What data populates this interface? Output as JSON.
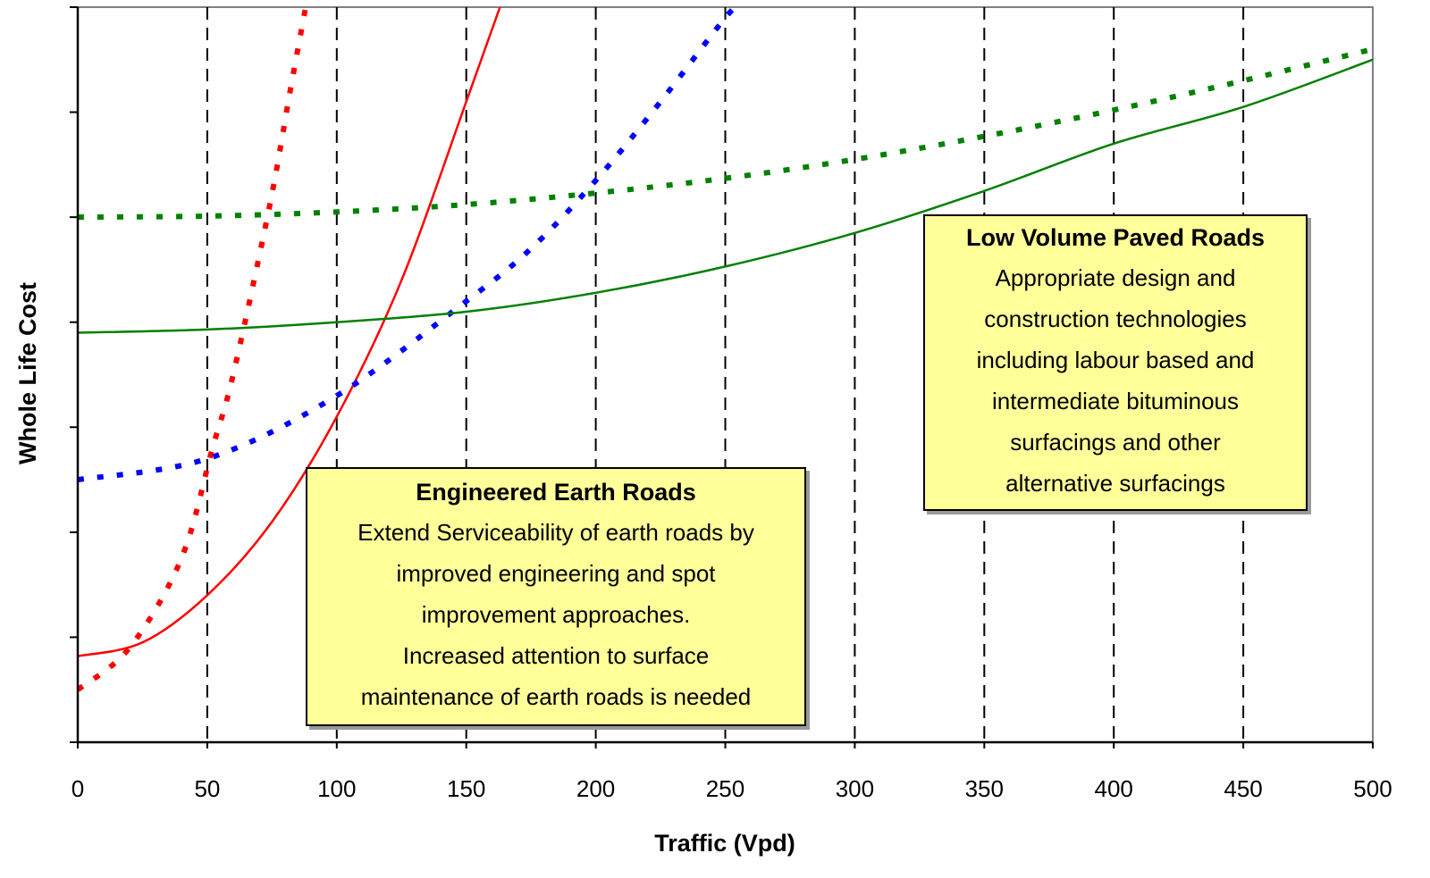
{
  "chart_data": {
    "type": "line",
    "xlabel": "Traffic (Vpd)",
    "ylabel": "Whole Life Cost",
    "xlim": [
      0,
      500
    ],
    "ylim": [
      0,
      7
    ],
    "x_ticks": [
      0,
      50,
      100,
      150,
      200,
      250,
      300,
      350,
      400,
      450,
      500
    ],
    "y_tick_count": 8,
    "vertical_gridlines": "dashed",
    "series": [
      {
        "color": "#ff0000",
        "style": "dotted",
        "points": [
          [
            0,
            0.5
          ],
          [
            20,
            0.9
          ],
          [
            40,
            1.75
          ],
          [
            52,
            2.8
          ],
          [
            60,
            3.5
          ],
          [
            74,
            5.1
          ],
          [
            82,
            6.2
          ],
          [
            88,
            7.0
          ]
        ]
      },
      {
        "color": "#ff0000",
        "style": "solid",
        "points": [
          [
            0,
            0.82
          ],
          [
            25,
            0.95
          ],
          [
            50,
            1.4
          ],
          [
            75,
            2.1
          ],
          [
            100,
            3.1
          ],
          [
            125,
            4.4
          ],
          [
            150,
            6.1
          ],
          [
            163,
            7.0
          ]
        ]
      },
      {
        "color": "#0000ff",
        "style": "dotted",
        "points": [
          [
            0,
            2.5
          ],
          [
            50,
            2.7
          ],
          [
            100,
            3.3
          ],
          [
            150,
            4.2
          ],
          [
            175,
            4.7
          ],
          [
            200,
            5.35
          ],
          [
            225,
            6.1
          ],
          [
            250,
            6.9
          ],
          [
            255,
            7.0
          ]
        ]
      },
      {
        "color": "#008000",
        "style": "dotted",
        "points": [
          [
            0,
            5.0
          ],
          [
            50,
            5.01
          ],
          [
            100,
            5.05
          ],
          [
            150,
            5.12
          ],
          [
            200,
            5.23
          ],
          [
            250,
            5.37
          ],
          [
            300,
            5.55
          ],
          [
            350,
            5.77
          ],
          [
            400,
            6.02
          ],
          [
            450,
            6.3
          ],
          [
            500,
            6.6
          ]
        ]
      },
      {
        "color": "#008000",
        "style": "solid",
        "points": [
          [
            0,
            3.9
          ],
          [
            50,
            3.93
          ],
          [
            100,
            4.0
          ],
          [
            150,
            4.1
          ],
          [
            200,
            4.28
          ],
          [
            250,
            4.53
          ],
          [
            300,
            4.85
          ],
          [
            350,
            5.25
          ],
          [
            400,
            5.7
          ],
          [
            450,
            6.05
          ],
          [
            500,
            6.5
          ]
        ]
      }
    ],
    "annotations": [
      {
        "title": "Engineered Earth Roads",
        "lines": [
          "Extend Serviceability of earth roads by",
          "improved engineering and spot",
          "improvement approaches.",
          "Increased attention to surface",
          "maintenance of earth roads is needed"
        ]
      },
      {
        "title": "Low Volume Paved Roads",
        "lines": [
          "Appropriate design and",
          "construction technologies",
          "including labour based and",
          "intermediate bituminous",
          "surfacings and other",
          "alternative surfacings"
        ]
      }
    ]
  }
}
